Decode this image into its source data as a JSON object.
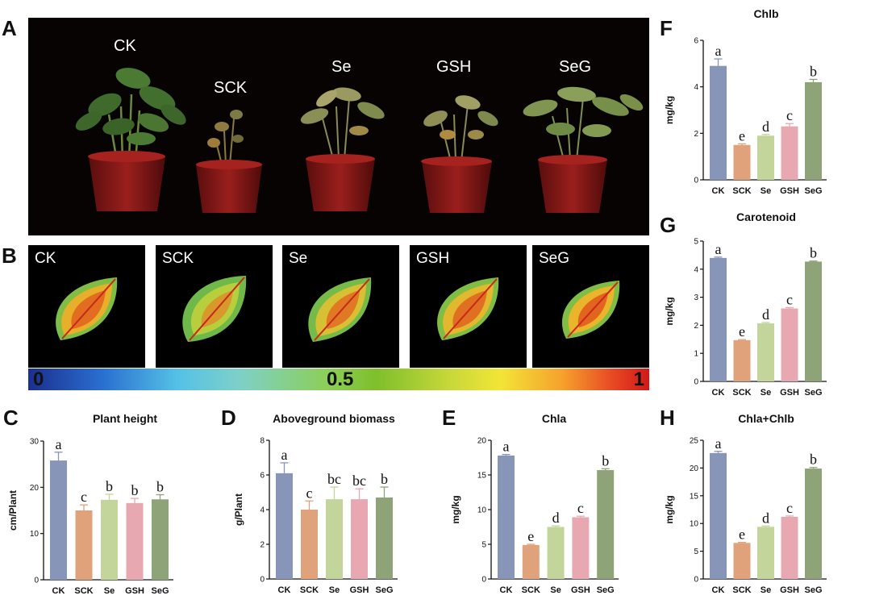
{
  "panels": {
    "A": "A",
    "B": "B",
    "C": "C",
    "D": "D",
    "E": "E",
    "F": "F",
    "G": "G",
    "H": "H"
  },
  "photo_labels": [
    "CK",
    "SCK",
    "Se",
    "GSH",
    "SeG"
  ],
  "leaf_labels": [
    "CK",
    "SCK",
    "Se",
    "GSH",
    "SeG"
  ],
  "colorbar": {
    "min": "0",
    "mid": "0.5",
    "max": "1",
    "colors": [
      "#1b2f8f",
      "#54c1e6",
      "#8ccf59",
      "#f2e536",
      "#d21818"
    ]
  },
  "bar_colors": [
    "#8795b8",
    "#e0a27a",
    "#c3d59b",
    "#e8a8b2",
    "#8fa378"
  ],
  "chart_data": [
    {
      "id": "C",
      "type": "bar",
      "title": "Plant height",
      "ylabel": "cm/Plant",
      "categories": [
        "CK",
        "SCK",
        "Se",
        "GSH",
        "SeG"
      ],
      "values": [
        25.8,
        15.0,
        17.3,
        16.6,
        17.4
      ],
      "errors": [
        1.8,
        1.2,
        1.2,
        1.0,
        1.0
      ],
      "letters": [
        "a",
        "c",
        "b",
        "b",
        "b"
      ],
      "ylim": [
        0,
        30
      ],
      "yticks": [
        "0",
        "10",
        "20",
        "30"
      ]
    },
    {
      "id": "D",
      "type": "bar",
      "title": "Aboveground biomass",
      "ylabel": "g/Plant",
      "categories": [
        "CK",
        "SCK",
        "Se",
        "GSH",
        "SeG"
      ],
      "values": [
        6.1,
        4.0,
        4.6,
        4.6,
        4.7
      ],
      "errors": [
        0.6,
        0.5,
        0.7,
        0.6,
        0.6
      ],
      "letters": [
        "a",
        "c",
        "bc",
        "bc",
        "b"
      ],
      "ylim": [
        0,
        8
      ],
      "yticks": [
        "0",
        "2",
        "4",
        "6",
        "8"
      ]
    },
    {
      "id": "E",
      "type": "bar",
      "title": "Chla",
      "ylabel": "mg/kg",
      "categories": [
        "CK",
        "SCK",
        "Se",
        "GSH",
        "SeG"
      ],
      "values": [
        17.8,
        4.9,
        7.5,
        8.9,
        15.7
      ],
      "errors": [
        0.15,
        0.1,
        0.15,
        0.15,
        0.2
      ],
      "letters": [
        "a",
        "e",
        "d",
        "c",
        "b"
      ],
      "ylim": [
        0,
        20
      ],
      "yticks": [
        "0",
        "5",
        "10",
        "15",
        "20"
      ]
    },
    {
      "id": "F",
      "type": "bar",
      "title": "Chlb",
      "ylabel": "mg/kg",
      "categories": [
        "CK",
        "SCK",
        "Se",
        "GSH",
        "SeG"
      ],
      "values": [
        4.9,
        1.5,
        1.9,
        2.3,
        4.2
      ],
      "errors": [
        0.3,
        0.05,
        0.05,
        0.12,
        0.12
      ],
      "letters": [
        "a",
        "e",
        "d",
        "c",
        "b"
      ],
      "ylim": [
        0,
        6
      ],
      "yticks": [
        "0",
        "2",
        "4",
        "6"
      ]
    },
    {
      "id": "G",
      "type": "bar",
      "title": "Carotenoid",
      "ylabel": "mg/kg",
      "categories": [
        "CK",
        "SCK",
        "Se",
        "GSH",
        "SeG"
      ],
      "values": [
        4.4,
        1.47,
        2.07,
        2.6,
        4.27
      ],
      "errors": [
        0.03,
        0.02,
        0.03,
        0.03,
        0.02
      ],
      "letters": [
        "a",
        "e",
        "d",
        "c",
        "b"
      ],
      "ylim": [
        0,
        5
      ],
      "yticks": [
        "0",
        "1",
        "2",
        "3",
        "4",
        "5"
      ]
    },
    {
      "id": "H",
      "type": "bar",
      "title": "Chla+Chlb",
      "ylabel": "mg/kg",
      "categories": [
        "CK",
        "SCK",
        "Se",
        "GSH",
        "SeG"
      ],
      "values": [
        22.7,
        6.5,
        9.4,
        11.2,
        19.9
      ],
      "errors": [
        0.3,
        0.1,
        0.15,
        0.15,
        0.2
      ],
      "letters": [
        "a",
        "e",
        "d",
        "c",
        "b"
      ],
      "ylim": [
        0,
        25
      ],
      "yticks": [
        "0",
        "5",
        "10",
        "15",
        "20",
        "25"
      ]
    }
  ]
}
